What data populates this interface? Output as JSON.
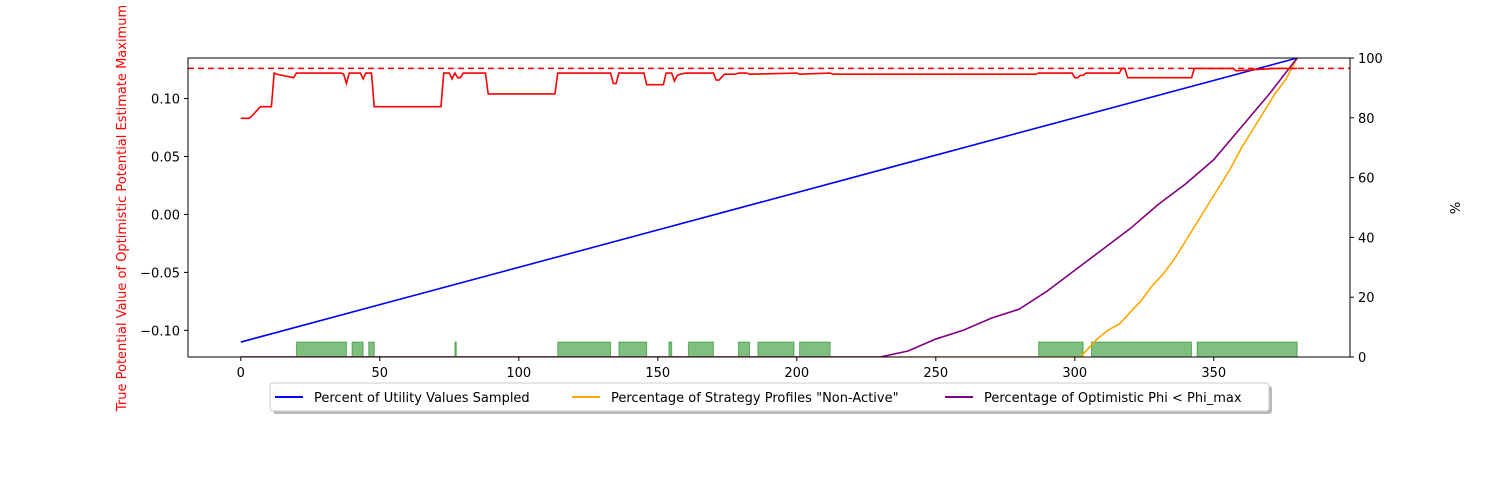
{
  "chart_data": {
    "type": "line",
    "title": "",
    "xlabel": "",
    "ylabel_left": "True Potential Value of Optimistic Potential Estimate Maximum",
    "ylabel_right": "%",
    "xlim": [
      -19,
      399
    ],
    "ylim_left": [
      -0.123,
      0.135
    ],
    "ylim_right": [
      0,
      100
    ],
    "x_ticks": [
      0,
      50,
      100,
      150,
      200,
      250,
      300,
      350
    ],
    "y_ticks_left": [
      "−0.10",
      "−0.05",
      "0.00",
      "0.05",
      "0.10"
    ],
    "y_ticks_left_values": [
      -0.1,
      -0.05,
      0.0,
      0.05,
      0.1
    ],
    "y_ticks_right": [
      0,
      20,
      40,
      60,
      80,
      100
    ],
    "reference_line_left": 0.126,
    "red_series": {
      "axis": "left",
      "color": "#ff0000",
      "x": [
        0,
        3,
        4,
        7,
        8,
        11,
        12,
        13,
        19,
        20,
        36,
        37,
        38,
        39,
        42,
        43,
        44,
        45,
        47,
        48,
        72,
        73,
        75,
        76,
        77,
        78,
        79,
        80,
        81,
        88,
        89,
        90,
        113,
        114,
        133,
        134,
        135,
        136,
        145,
        146,
        152,
        153,
        155,
        156,
        157,
        158,
        160,
        170,
        171,
        172,
        174,
        178,
        179,
        182,
        183,
        200,
        201,
        212,
        213,
        286,
        287,
        299,
        300,
        301,
        302,
        303,
        304,
        316,
        317,
        318,
        319,
        342,
        343,
        357,
        358,
        372,
        373,
        380
      ],
      "y": [
        0.083,
        0.083,
        0.085,
        0.093,
        0.093,
        0.093,
        0.122,
        0.121,
        0.118,
        0.122,
        0.122,
        0.121,
        0.113,
        0.122,
        0.122,
        0.122,
        0.117,
        0.122,
        0.122,
        0.093,
        0.093,
        0.122,
        0.122,
        0.117,
        0.122,
        0.118,
        0.118,
        0.122,
        0.122,
        0.122,
        0.104,
        0.104,
        0.104,
        0.122,
        0.122,
        0.113,
        0.113,
        0.122,
        0.122,
        0.112,
        0.112,
        0.122,
        0.122,
        0.115,
        0.12,
        0.121,
        0.122,
        0.122,
        0.116,
        0.116,
        0.121,
        0.121,
        0.122,
        0.122,
        0.121,
        0.122,
        0.121,
        0.122,
        0.121,
        0.121,
        0.122,
        0.122,
        0.118,
        0.118,
        0.12,
        0.12,
        0.122,
        0.122,
        0.126,
        0.126,
        0.118,
        0.118,
        0.126,
        0.126,
        0.124,
        0.126,
        0.126,
        0.126
      ]
    },
    "series": [
      {
        "name": "Percent of Utility Values Sampled",
        "axis": "right",
        "color": "#0000ff",
        "x": [
          0,
          380
        ],
        "y": [
          5,
          100
        ]
      },
      {
        "name": "Percentage of Strategy Profiles \"Non-Active\"",
        "axis": "right",
        "color": "#ffa500",
        "x": [
          0,
          302,
          305,
          308,
          312,
          316,
          320,
          324,
          328,
          332,
          336,
          340,
          344,
          348,
          352,
          356,
          360,
          364,
          368,
          372,
          376,
          380
        ],
        "y": [
          0,
          0,
          3,
          6,
          9,
          11,
          15,
          19,
          24,
          28,
          33,
          39,
          45,
          51,
          57,
          63,
          70,
          76,
          82,
          88,
          93,
          100
        ]
      },
      {
        "name": "Percentage of Optimistic Phi < Phi_max",
        "axis": "right",
        "color": "#800080",
        "x": [
          0,
          230,
          240,
          250,
          260,
          270,
          280,
          290,
          300,
          310,
          320,
          330,
          340,
          350,
          360,
          370,
          380
        ],
        "y": [
          0,
          0,
          2,
          6,
          9,
          13,
          16,
          22,
          29,
          36,
          43,
          51,
          58,
          66,
          77,
          88,
          100
        ]
      }
    ],
    "green_bars": {
      "axis": "right",
      "color": "#008000",
      "opacity": 0.5,
      "height_pct": 5,
      "intervals": [
        [
          20,
          38
        ],
        [
          40,
          44
        ],
        [
          46,
          48
        ],
        [
          77,
          77.5
        ],
        [
          114,
          133
        ],
        [
          136,
          146
        ],
        [
          154,
          155
        ],
        [
          161,
          170
        ],
        [
          179,
          183
        ],
        [
          186,
          199
        ],
        [
          201,
          212
        ],
        [
          287,
          303
        ],
        [
          306,
          342
        ],
        [
          344,
          380
        ]
      ]
    }
  }
}
